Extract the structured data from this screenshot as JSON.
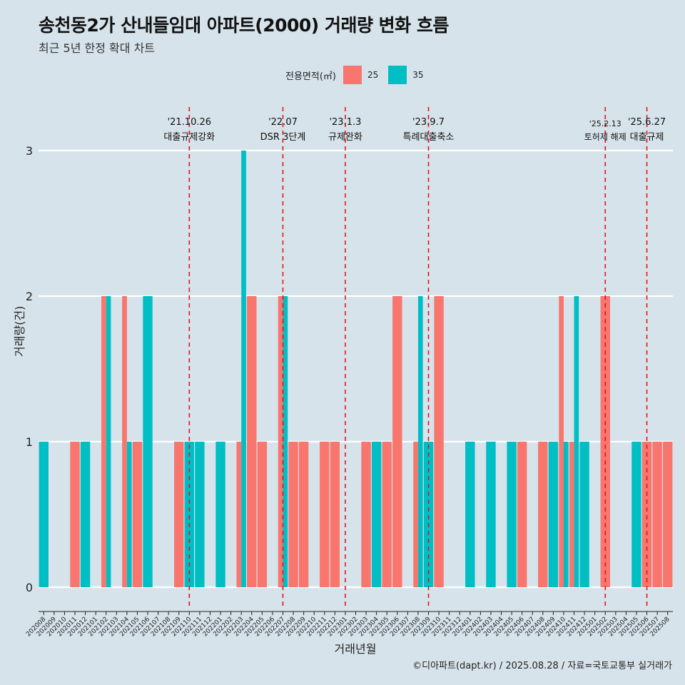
{
  "title": "송천동2가 산내들임대 아파트(2000) 거래량 변화 흐름",
  "subtitle": "최근 5년 한정 확대 차트",
  "caption": "©디아파트(dapt.kr) / 2025.08.28 / 자료=국토교통부 실거래가",
  "legend": {
    "title": "전용면적(㎡)",
    "items": [
      {
        "label": "25",
        "color": "#f8766d"
      },
      {
        "label": "35",
        "color": "#00bfc4"
      }
    ]
  },
  "chart_data": {
    "type": "bar",
    "title": "송천동2가 산내들임대 아파트(2000) 거래량 변화 흐름",
    "subtitle": "최근 5년 한정 확대 차트",
    "xlabel": "거래년월",
    "ylabel": "거래량(건)",
    "ylim": [
      0,
      3
    ],
    "yticks": [
      0,
      1,
      2,
      3
    ],
    "grid": true,
    "legend_position": "top",
    "categories": [
      "202008",
      "202009",
      "202010",
      "202011",
      "202012",
      "202101",
      "202102",
      "202103",
      "202104",
      "202105",
      "202106",
      "202107",
      "202108",
      "202109",
      "202110",
      "202111",
      "202112",
      "202201",
      "202202",
      "202203",
      "202204",
      "202205",
      "202206",
      "202207",
      "202208",
      "202209",
      "202210",
      "202211",
      "202212",
      "202301",
      "202302",
      "202303",
      "202304",
      "202305",
      "202306",
      "202307",
      "202308",
      "202309",
      "202310",
      "202311",
      "202312",
      "202401",
      "202402",
      "202403",
      "202404",
      "202405",
      "202406",
      "202407",
      "202408",
      "202409",
      "202410",
      "202411",
      "202412",
      "202501",
      "202502",
      "202503",
      "202504",
      "202505",
      "202506",
      "202507",
      "202508"
    ],
    "series": [
      {
        "name": "25",
        "color": "#f8766d",
        "values": [
          0,
          0,
          0,
          1,
          0,
          0,
          2,
          0,
          2,
          1,
          0,
          0,
          0,
          1,
          0,
          0,
          0,
          0,
          0,
          1,
          2,
          1,
          0,
          2,
          1,
          1,
          0,
          1,
          1,
          0,
          0,
          1,
          0,
          1,
          2,
          0,
          1,
          0,
          2,
          0,
          0,
          0,
          0,
          0,
          0,
          0,
          1,
          0,
          1,
          0,
          2,
          1,
          0,
          0,
          2,
          0,
          0,
          0,
          1,
          1,
          1
        ]
      },
      {
        "name": "35",
        "color": "#00bfc4",
        "values": [
          1,
          0,
          0,
          0,
          1,
          0,
          2,
          0,
          1,
          0,
          2,
          0,
          0,
          0,
          1,
          1,
          0,
          1,
          0,
          3,
          0,
          0,
          0,
          2,
          0,
          0,
          0,
          0,
          0,
          0,
          0,
          0,
          1,
          0,
          0,
          0,
          2,
          1,
          0,
          0,
          0,
          1,
          0,
          1,
          0,
          1,
          0,
          0,
          0,
          1,
          1,
          2,
          1,
          0,
          0,
          0,
          0,
          1,
          0,
          0,
          0
        ]
      }
    ],
    "events": [
      {
        "date": "'21.10.26",
        "label": "대출규제강화",
        "x_index": 14.0
      },
      {
        "date": "'22.07",
        "label": "DSR 3단계",
        "x_index": 23.0
      },
      {
        "date": "'23.1.3",
        "label": "규제완화",
        "x_index": 29.0
      },
      {
        "date": "'23.9.7",
        "label": "특례대출축소",
        "x_index": 37.0
      },
      {
        "date": "'25.2.13",
        "label": "토허제 해제",
        "x_index": 54.0
      },
      {
        "date": "'25.6.27",
        "label": "대출규제",
        "x_index": 58.0
      }
    ]
  }
}
